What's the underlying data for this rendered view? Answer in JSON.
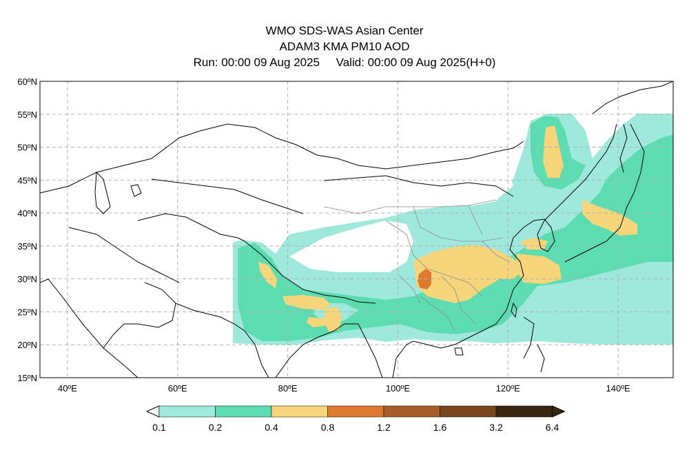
{
  "header": {
    "title": "WMO SDS-WAS Asian Center",
    "subtitle": "ADAM3 KMA PM10 AOD",
    "run_label": "Run: 00:00 09 Aug 2025",
    "valid_label": "Valid: 00:00 09 Aug 2025(H+0)"
  },
  "map": {
    "lon_range": [
      35,
      150
    ],
    "lat_range": [
      15,
      60
    ],
    "lat_ticks": [
      "15ºN",
      "20ºN",
      "25ºN",
      "30ºN",
      "35ºN",
      "40ºN",
      "45ºN",
      "50ºN",
      "55ºN",
      "60ºN"
    ],
    "lon_ticks": [
      "40ºE",
      "60ºE",
      "80ºE",
      "100ºE",
      "120ºE",
      "140ºE"
    ],
    "grid": true
  },
  "colorbar": {
    "levels": [
      "0.1",
      "0.2",
      "0.4",
      "0.8",
      "1.2",
      "1.6",
      "3.2",
      "6.4"
    ],
    "colors": [
      "#9ee8dc",
      "#5ddcb2",
      "#f7d57a",
      "#de7a30",
      "#a65f28",
      "#79461e",
      "#3a2510"
    ]
  }
}
